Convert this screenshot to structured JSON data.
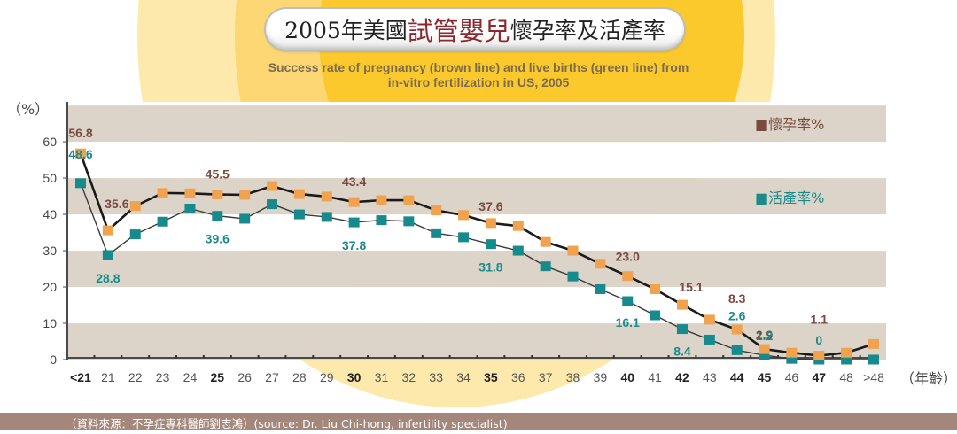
{
  "header": {
    "title_prefix": "2005年美國",
    "title_accent": "試管嬰兒",
    "title_suffix": "懷孕率及活產率",
    "subtitle_line1": "Success rate of pregnancy (brown line) and live births (green line) from",
    "subtitle_line2": "in-vitro fertilization in US, 2005"
  },
  "footer": {
    "source": "（資料來源：不孕症專科醫師劉志鴻）(source: Dr. Liu Chi-hong, infertility specialist)"
  },
  "colors": {
    "pregnancy_line": "#1a1a1a",
    "pregnancy_marker": "#f0a24e",
    "pregnancy_label": "#7a4a40",
    "live_line": "#3a3a3a",
    "live_marker": "#168a8c",
    "live_label": "#1a8a8a",
    "band_dark": "#dcd4c8",
    "band_light": "#ffffff",
    "footer_bg": "#a4877a"
  },
  "chart_data": {
    "type": "line",
    "title": "2005年美國試管嬰兒懷孕率及活產率",
    "subtitle": "Success rate of pregnancy (brown line) and live births (green line) from in-vitro fertilization in US, 2005",
    "xlabel": "（年齡）",
    "ylabel": "（%）",
    "ylim": [
      0,
      71
    ],
    "yticks": [
      0,
      10,
      20,
      30,
      40,
      50,
      60
    ],
    "grid": "alternating horizontal bands every 10",
    "legend_position": "right",
    "categories": [
      "<21",
      "21",
      "22",
      "23",
      "24",
      "25",
      "26",
      "27",
      "28",
      "29",
      "30",
      "31",
      "32",
      "33",
      "34",
      "35",
      "36",
      "37",
      "38",
      "39",
      "40",
      "41",
      "42",
      "43",
      "44",
      "45",
      "46",
      "47",
      "48",
      ">48"
    ],
    "bold_categories": [
      "<21",
      "25",
      "30",
      "35",
      "40",
      "42",
      "44",
      "45",
      "47"
    ],
    "series": [
      {
        "name": "懷孕率%",
        "key": "pregnancy",
        "values": [
          56.8,
          35.6,
          42.3,
          45.9,
          45.8,
          45.5,
          45.4,
          47.8,
          45.6,
          44.9,
          43.4,
          43.9,
          43.9,
          41.1,
          39.8,
          37.6,
          36.8,
          32.4,
          30.0,
          26.4,
          23.0,
          19.4,
          15.1,
          11.0,
          8.3,
          2.9,
          1.9,
          1.1,
          1.9,
          4.3
        ]
      },
      {
        "name": "活產率%",
        "key": "live",
        "values": [
          48.6,
          28.8,
          34.5,
          38.0,
          41.6,
          39.6,
          38.8,
          42.8,
          40.0,
          39.3,
          37.8,
          38.4,
          38.1,
          34.8,
          33.7,
          31.8,
          30.0,
          25.7,
          22.9,
          19.4,
          16.1,
          12.2,
          8.4,
          5.5,
          2.6,
          1.2,
          0.2,
          0,
          0,
          0
        ]
      }
    ],
    "annotations": [
      {
        "series": "pregnancy",
        "category": "<21",
        "text": "56.8"
      },
      {
        "series": "pregnancy",
        "category": "21",
        "text": "35.6"
      },
      {
        "series": "pregnancy",
        "category": "25",
        "text": "45.5"
      },
      {
        "series": "pregnancy",
        "category": "30",
        "text": "43.4"
      },
      {
        "series": "pregnancy",
        "category": "35",
        "text": "37.6"
      },
      {
        "series": "pregnancy",
        "category": "40",
        "text": "23.0"
      },
      {
        "series": "pregnancy",
        "category": "42",
        "text": "15.1"
      },
      {
        "series": "pregnancy",
        "category": "44",
        "text": "8.3"
      },
      {
        "series": "pregnancy",
        "category": "45",
        "text": "2.9"
      },
      {
        "series": "pregnancy",
        "category": "47",
        "text": "1.1"
      },
      {
        "series": "live",
        "category": "<21",
        "text": "48.6"
      },
      {
        "series": "live",
        "category": "21",
        "text": "28.8"
      },
      {
        "series": "live",
        "category": "25",
        "text": "39.6"
      },
      {
        "series": "live",
        "category": "30",
        "text": "37.8"
      },
      {
        "series": "live",
        "category": "35",
        "text": "31.8"
      },
      {
        "series": "live",
        "category": "40",
        "text": "16.1"
      },
      {
        "series": "live",
        "category": "42",
        "text": "8.4"
      },
      {
        "series": "live",
        "category": "44",
        "text": "2.6"
      },
      {
        "series": "live",
        "category": "45",
        "text": "1.2"
      },
      {
        "series": "live",
        "category": "47",
        "text": "0"
      }
    ],
    "legend": [
      {
        "key": "pregnancy",
        "label": "■懷孕率%"
      },
      {
        "key": "live",
        "label": "■活產率%"
      }
    ]
  }
}
